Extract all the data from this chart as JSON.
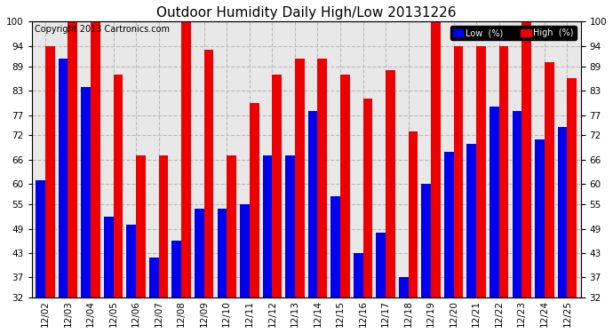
{
  "title": "Outdoor Humidity Daily High/Low 20131226",
  "copyright": "Copyright 2013 Cartronics.com",
  "legend_low": "Low  (%)",
  "legend_high": "High  (%)",
  "dates": [
    "12/02",
    "12/03",
    "12/04",
    "12/05",
    "12/06",
    "12/07",
    "12/08",
    "12/09",
    "12/10",
    "12/11",
    "12/12",
    "12/13",
    "12/14",
    "12/15",
    "12/16",
    "12/17",
    "12/18",
    "12/19",
    "12/20",
    "12/21",
    "12/22",
    "12/23",
    "12/24",
    "12/25"
  ],
  "high": [
    94,
    100,
    100,
    87,
    67,
    67,
    100,
    93,
    67,
    80,
    87,
    91,
    91,
    87,
    81,
    88,
    73,
    100,
    94,
    94,
    94,
    100,
    90,
    86
  ],
  "low": [
    61,
    91,
    84,
    52,
    50,
    42,
    46,
    54,
    54,
    55,
    67,
    67,
    78,
    57,
    43,
    48,
    37,
    60,
    68,
    70,
    79,
    78,
    71,
    74
  ],
  "bg_color": "#ffffff",
  "plot_bg": "#e8e8e8",
  "bar_color_low": "#0000ee",
  "bar_color_high": "#ee0000",
  "grid_color": "#bbbbbb",
  "ylim": [
    32,
    100
  ],
  "yticks": [
    32,
    37,
    43,
    49,
    55,
    60,
    66,
    72,
    77,
    83,
    89,
    94,
    100
  ],
  "title_fontsize": 11,
  "tick_fontsize": 7.5,
  "legend_fontsize": 7,
  "copyright_fontsize": 7
}
